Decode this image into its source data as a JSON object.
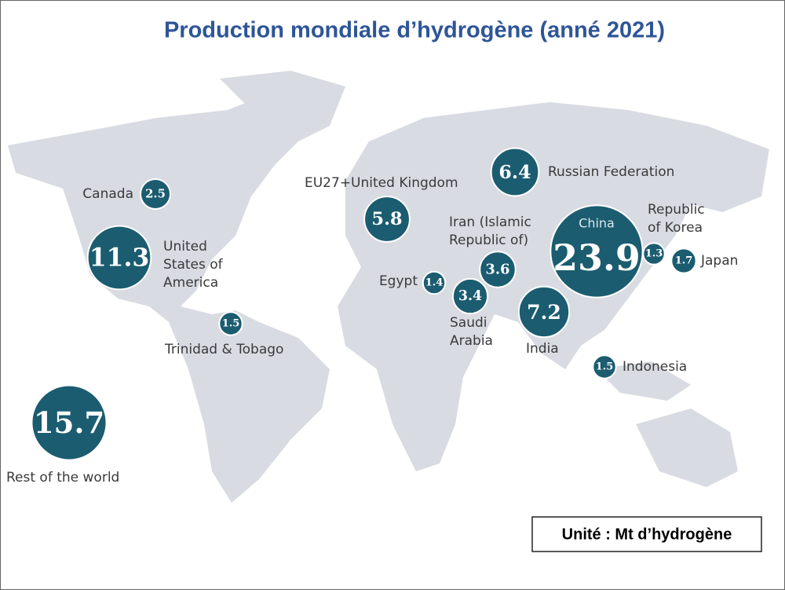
{
  "title": "Production mondiale d’hydrogène (anné 2021)",
  "unit_note": "Unité : Mt d’hydrogène",
  "regions": [
    {
      "label": [
        "Canada"
      ],
      "value": 2.5
    },
    {
      "label": [
        "United",
        "States of",
        "America"
      ],
      "value": 11.3
    },
    {
      "label": [
        "Trinidad & Tobago"
      ],
      "value": 1.5
    },
    {
      "label": [
        "Rest of the world"
      ],
      "value": 15.7
    },
    {
      "label": [
        "EU27+United Kingdom"
      ],
      "value": 5.8
    },
    {
      "label": [
        "Russian Federation"
      ],
      "value": 6.4
    },
    {
      "label": [
        "Iran (Islamic",
        "Republic of)"
      ],
      "value": 3.6
    },
    {
      "label": [
        "Egypt"
      ],
      "value": 1.4
    },
    {
      "label": [
        "Saudi",
        "Arabia"
      ],
      "value": 3.4
    },
    {
      "label": [
        "India"
      ],
      "value": 7.2
    },
    {
      "label": [
        "China"
      ],
      "value": 23.9
    },
    {
      "label": [
        "Republic",
        "of Korea"
      ],
      "value": 1.3
    },
    {
      "label": [
        "Japan"
      ],
      "value": 1.7
    },
    {
      "label": [
        "Indonesia"
      ],
      "value": 1.5
    }
  ]
}
